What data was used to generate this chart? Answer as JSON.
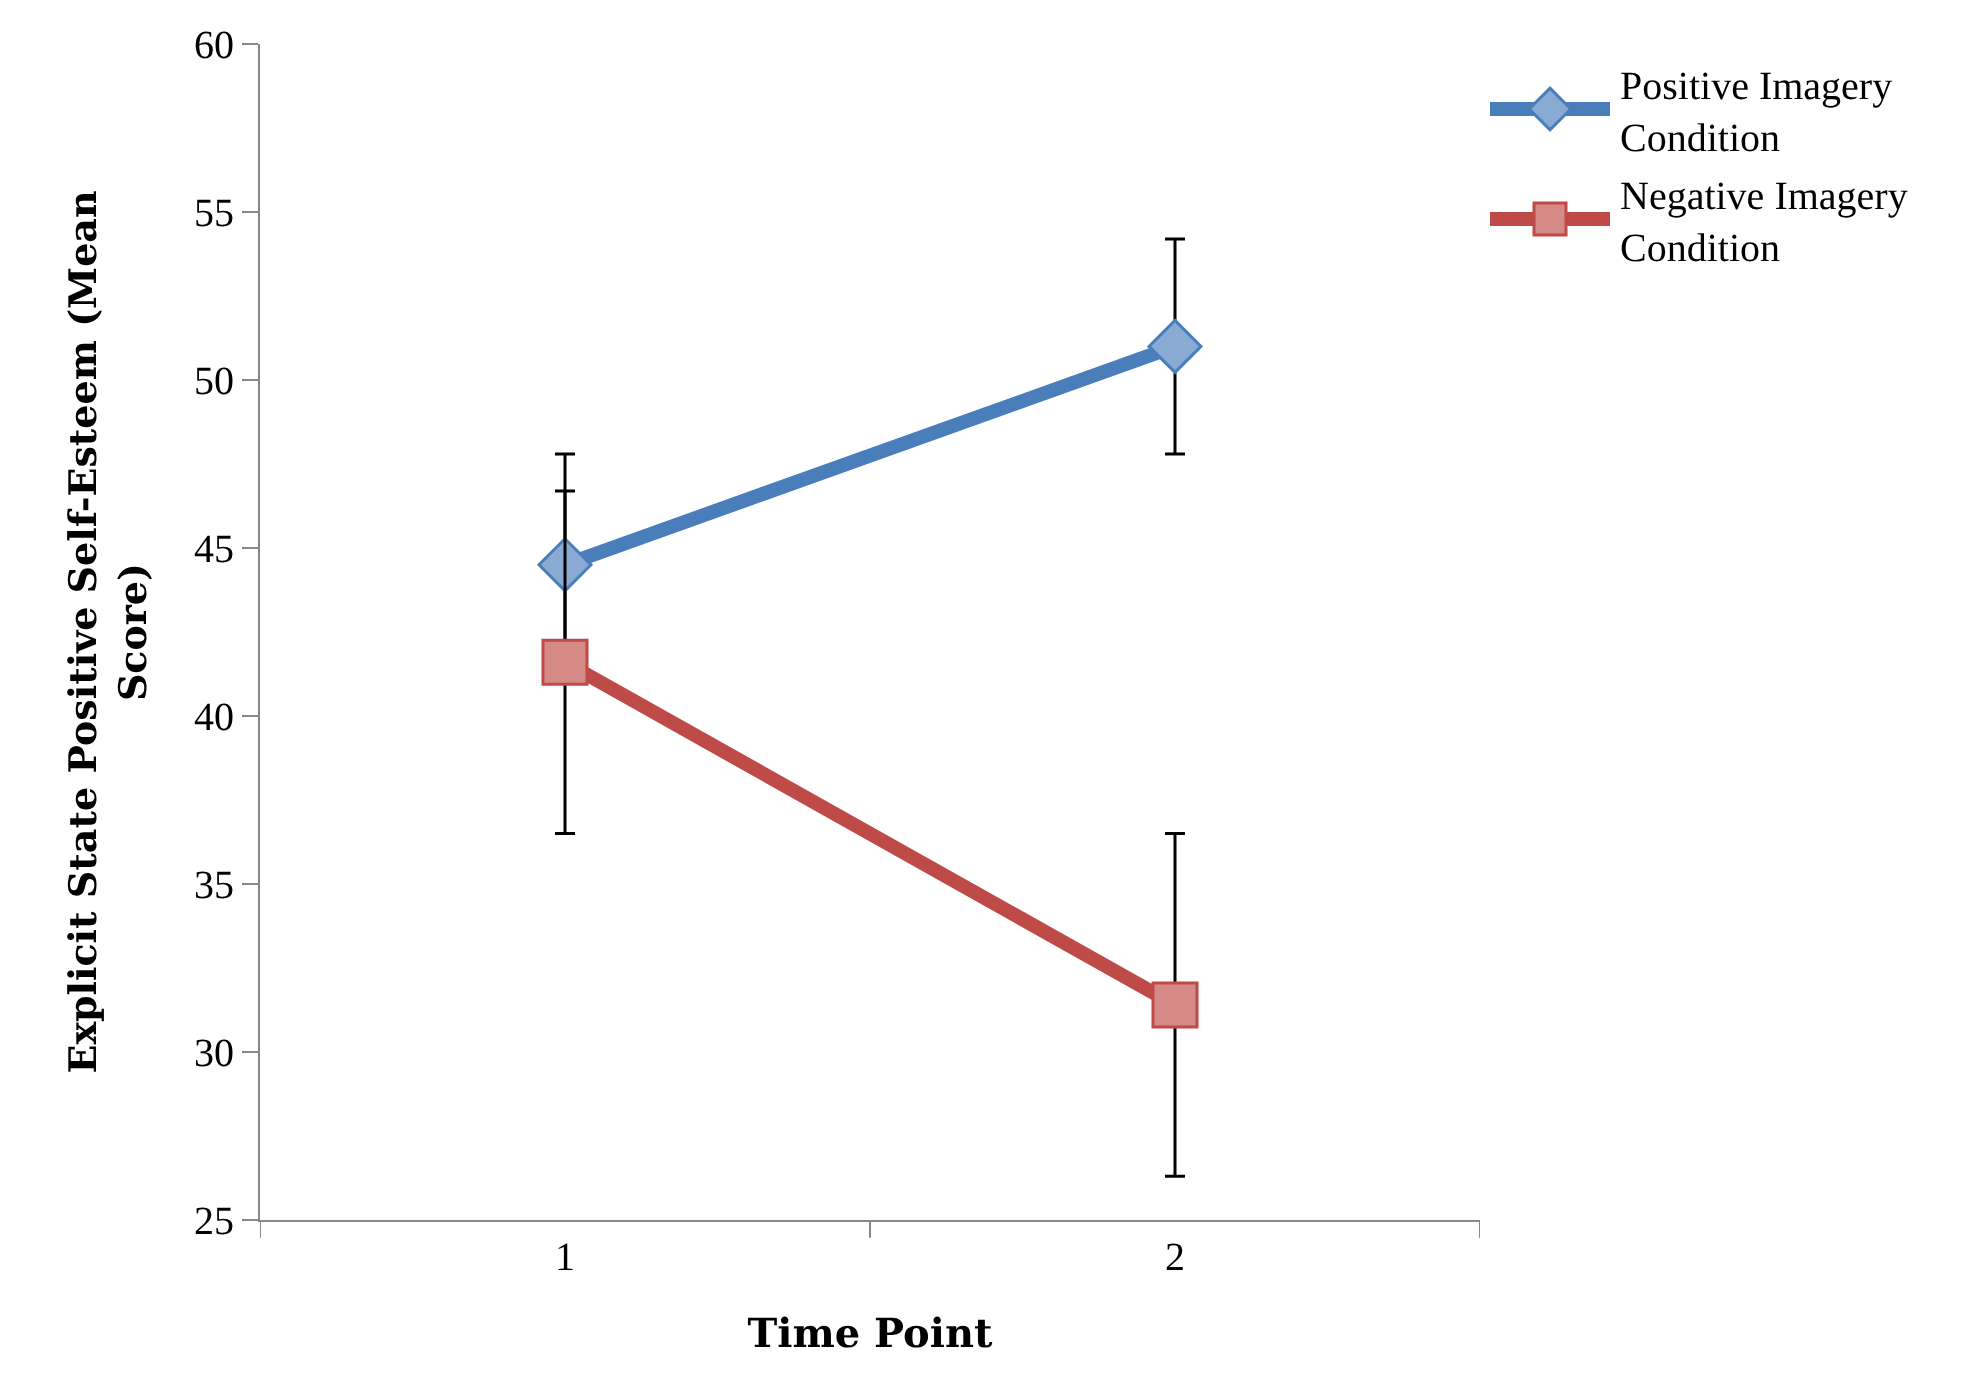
{
  "chart_data": {
    "type": "line",
    "xlabel": "Time Point",
    "ylabel": "Explicit State Positive Self-Esteem (Mean Score)",
    "categories": [
      "1",
      "2"
    ],
    "series": [
      {
        "name": "Positive Imagery Condition",
        "color": "#4a7ebb",
        "marker": "diamond",
        "values": [
          44.5,
          51.0
        ],
        "errors": [
          3.3,
          3.2
        ]
      },
      {
        "name": "Negative Imagery Condition",
        "color": "#be4b48",
        "marker": "square",
        "values": [
          41.6,
          31.4
        ],
        "errors": [
          5.1,
          5.1
        ]
      }
    ],
    "ylim": [
      25,
      60
    ],
    "yticks": [
      25,
      30,
      35,
      40,
      45,
      50,
      55,
      60
    ],
    "grid": false,
    "legend": "top right"
  }
}
